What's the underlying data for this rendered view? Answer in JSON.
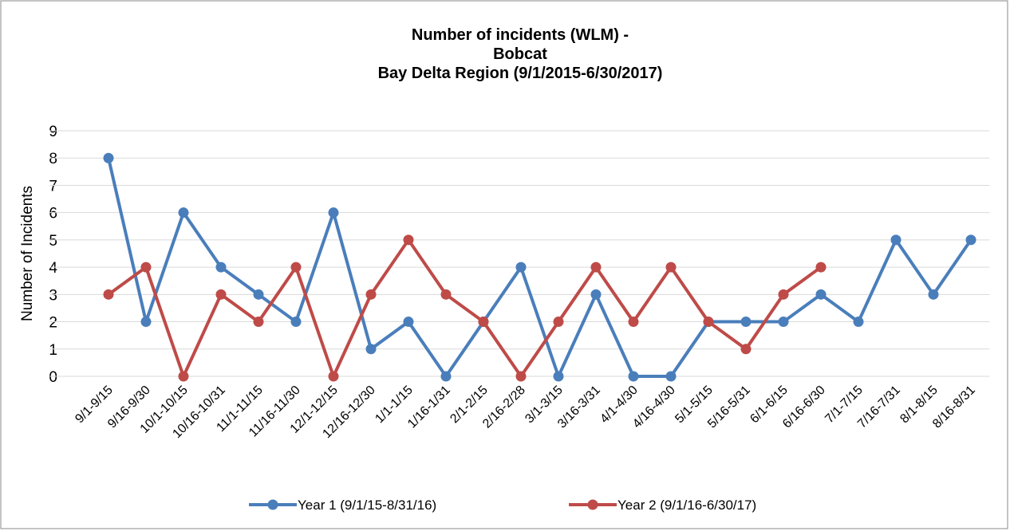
{
  "chart_data": {
    "type": "line",
    "title": [
      "Number of incidents (WLM) -",
      "Bobcat",
      "Bay Delta Region (9/1/2015-6/30/2017)"
    ],
    "y_label": "Number of Incidents",
    "categories": [
      "9/1-9/15",
      "9/16-9/30",
      "10/1-10/15",
      "10/16-10/31",
      "11/1-11/15",
      "11/16-11/30",
      "12/1-12/15",
      "12/16-12/30",
      "1/1-1/15",
      "1/16-1/31",
      "2/1-2/15",
      "2/16-2/28",
      "3/1-3/15",
      "3/16-3/31",
      "4/1-4/30",
      "4/16-4/30",
      "5/1-5/15",
      "5/16-5/31",
      "6/1-6/15",
      "6/16-6/30",
      "7/1-7/15",
      "7/16-7/31",
      "8/1-8/15",
      "8/16-8/31"
    ],
    "series": [
      {
        "name": "Year 1 (9/1/15-8/31/16)",
        "color": "#4a7ebb",
        "values": [
          8,
          2,
          6,
          4,
          3,
          2,
          6,
          1,
          2,
          0,
          2,
          4,
          0,
          3,
          0,
          0,
          2,
          2,
          2,
          3,
          2,
          5,
          3,
          5
        ]
      },
      {
        "name": "Year 2 (9/1/16-6/30/17)",
        "color": "#be4b48",
        "values": [
          3,
          4,
          0,
          3,
          2,
          4,
          0,
          3,
          5,
          3,
          2,
          0,
          2,
          4,
          2,
          4,
          2,
          1,
          3,
          4,
          null,
          null,
          null,
          null
        ]
      }
    ],
    "ylim": [
      0,
      9
    ],
    "yticks": [
      0,
      1,
      2,
      3,
      4,
      5,
      6,
      7,
      8,
      9
    ],
    "grid": true,
    "legend": "bottom"
  }
}
